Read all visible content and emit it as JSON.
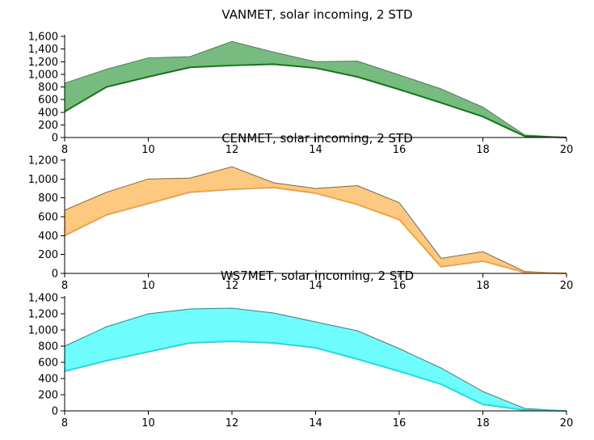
{
  "chart_data": [
    {
      "type": "area",
      "title": "VANMET, solar incoming, 2 STD",
      "x": [
        8,
        9,
        10,
        11,
        12,
        13,
        14,
        15,
        16,
        17,
        18,
        19,
        20
      ],
      "x_ticks": [
        "8",
        "10",
        "12",
        "14",
        "16",
        "18",
        "20"
      ],
      "y_ticks": [
        "0",
        "200",
        "400",
        "600",
        "800",
        "1,000",
        "1,200",
        "1,400",
        "1,600"
      ],
      "xlim": [
        8,
        20
      ],
      "ylim": [
        0,
        1600
      ],
      "upper": [
        860,
        1080,
        1260,
        1280,
        1520,
        1350,
        1200,
        1210,
        990,
        770,
        480,
        40,
        0
      ],
      "lower": [
        410,
        800,
        960,
        1110,
        1140,
        1160,
        1100,
        960,
        760,
        550,
        330,
        20,
        0
      ],
      "fill_color": "#77bb81",
      "line_color": "#0b7a10",
      "upper_line_color": "#6b6b6b"
    },
    {
      "type": "area",
      "title": "CENMET, solar incoming, 2 STD",
      "x": [
        8,
        9,
        10,
        11,
        12,
        13,
        14,
        15,
        16,
        17,
        18,
        19,
        20
      ],
      "x_ticks": [
        "8",
        "10",
        "12",
        "14",
        "16",
        "18",
        "20"
      ],
      "y_ticks": [
        "0",
        "200",
        "400",
        "600",
        "800",
        "1,000",
        "1,200"
      ],
      "xlim": [
        8,
        20
      ],
      "ylim": [
        0,
        1200
      ],
      "upper": [
        670,
        860,
        1000,
        1010,
        1130,
        960,
        900,
        930,
        750,
        160,
        230,
        20,
        0
      ],
      "lower": [
        400,
        620,
        740,
        860,
        890,
        910,
        850,
        730,
        570,
        70,
        130,
        10,
        0
      ],
      "fill_color": "#fdc880",
      "line_color": "#f4a23a",
      "upper_line_color": "#6b6b6b"
    },
    {
      "type": "area",
      "title": "WS7MET, solar incoming, 2 STD",
      "x": [
        8,
        9,
        10,
        11,
        12,
        13,
        14,
        15,
        16,
        17,
        18,
        19,
        20
      ],
      "x_ticks": [
        "8",
        "10",
        "12",
        "14",
        "16",
        "18",
        "20"
      ],
      "y_ticks": [
        "0",
        "200",
        "400",
        "600",
        "800",
        "1,000",
        "1,200",
        "1,400"
      ],
      "xlim": [
        8,
        20
      ],
      "ylim": [
        0,
        1400
      ],
      "upper": [
        800,
        1040,
        1200,
        1260,
        1270,
        1210,
        1100,
        990,
        770,
        530,
        240,
        30,
        0
      ],
      "lower": [
        490,
        620,
        730,
        840,
        860,
        840,
        780,
        640,
        490,
        330,
        80,
        10,
        0
      ],
      "fill_color": "#6ffcfc",
      "line_color": "#14e0e6",
      "upper_line_color": "#6b6b6b"
    }
  ]
}
